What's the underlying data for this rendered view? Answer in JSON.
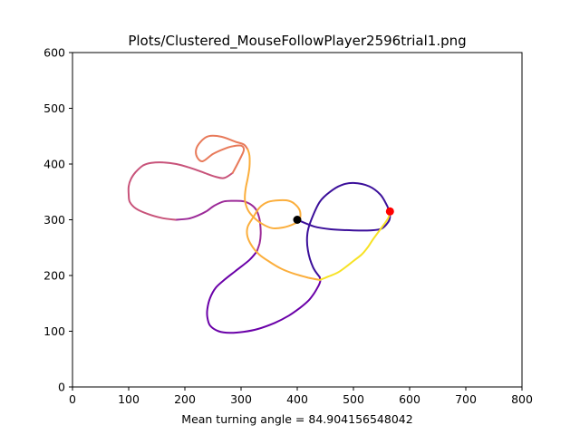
{
  "chart_data": {
    "type": "line",
    "title": "Plots/Clustered_MouseFollowPlayer2596trial1.png",
    "xlabel": "Mean turning angle = 84.904156548042",
    "ylabel": "",
    "xlim": [
      0,
      800
    ],
    "ylim": [
      0,
      600
    ],
    "xticks": [
      "0",
      "100",
      "200",
      "300",
      "400",
      "500",
      "600",
      "700",
      "800"
    ],
    "yticks": [
      "0",
      "100",
      "200",
      "300",
      "400",
      "500",
      "600"
    ],
    "grid": false,
    "series": [
      {
        "color": "#3b0f9a",
        "points": [
          [
            400,
            300
          ],
          [
            430,
            288
          ],
          [
            460,
            283
          ],
          [
            500,
            281
          ],
          [
            530,
            281
          ],
          [
            550,
            284
          ],
          [
            562,
            296
          ],
          [
            565,
            305
          ],
          [
            563,
            315
          ],
          [
            560,
            325
          ],
          [
            548,
            345
          ],
          [
            528,
            360
          ],
          [
            500,
            366
          ],
          [
            478,
            362
          ],
          [
            458,
            350
          ],
          [
            440,
            332
          ],
          [
            425,
            300
          ],
          [
            418,
            275
          ],
          [
            419,
            245
          ],
          [
            428,
            215
          ],
          [
            440,
            197
          ]
        ]
      },
      {
        "color": "#6a00a8",
        "points": [
          [
            440,
            197
          ],
          [
            441,
            190
          ],
          [
            438,
            182
          ],
          [
            430,
            168
          ],
          [
            420,
            155
          ],
          [
            405,
            142
          ],
          [
            385,
            128
          ],
          [
            360,
            115
          ],
          [
            330,
            104
          ],
          [
            305,
            99
          ],
          [
            280,
            97
          ],
          [
            260,
            100
          ],
          [
            245,
            110
          ],
          [
            240,
            125
          ],
          [
            240,
            140
          ],
          [
            245,
            160
          ],
          [
            255,
            178
          ],
          [
            270,
            192
          ],
          [
            290,
            208
          ],
          [
            315,
            228
          ],
          [
            328,
            243
          ]
        ]
      },
      {
        "color": "#9c2a98",
        "points": [
          [
            328,
            243
          ],
          [
            333,
            258
          ],
          [
            335,
            275
          ],
          [
            334,
            293
          ],
          [
            332,
            305
          ],
          [
            327,
            318
          ],
          [
            318,
            327
          ],
          [
            305,
            333
          ],
          [
            290,
            334
          ],
          [
            270,
            333
          ],
          [
            252,
            325
          ],
          [
            238,
            315
          ],
          [
            224,
            308
          ],
          [
            206,
            302
          ],
          [
            183,
            300
          ]
        ]
      },
      {
        "color": "#c8537a",
        "points": [
          [
            183,
            300
          ],
          [
            160,
            303
          ],
          [
            135,
            310
          ],
          [
            113,
            320
          ],
          [
            102,
            332
          ],
          [
            100,
            345
          ],
          [
            100,
            360
          ],
          [
            104,
            373
          ],
          [
            112,
            385
          ],
          [
            125,
            397
          ],
          [
            140,
            402
          ],
          [
            162,
            403
          ],
          [
            185,
            400
          ],
          [
            210,
            393
          ],
          [
            235,
            384
          ],
          [
            255,
            377
          ],
          [
            270,
            375
          ],
          [
            285,
            384
          ]
        ]
      },
      {
        "color": "#e87a5a",
        "points": [
          [
            285,
            384
          ],
          [
            300,
            413
          ],
          [
            305,
            426
          ],
          [
            300,
            433
          ],
          [
            286,
            432
          ],
          [
            272,
            428
          ],
          [
            250,
            418
          ],
          [
            232,
            405
          ],
          [
            222,
            412
          ],
          [
            220,
            426
          ],
          [
            228,
            440
          ],
          [
            242,
            450
          ],
          [
            265,
            449
          ],
          [
            290,
            440
          ],
          [
            305,
            435
          ],
          [
            312,
            426
          ]
        ]
      },
      {
        "color": "#fbae3c",
        "points": [
          [
            312,
            426
          ],
          [
            315,
            415
          ],
          [
            315,
            395
          ],
          [
            312,
            375
          ],
          [
            308,
            355
          ],
          [
            307,
            335
          ],
          [
            312,
            318
          ],
          [
            322,
            305
          ],
          [
            337,
            293
          ],
          [
            355,
            285
          ],
          [
            374,
            286
          ],
          [
            393,
            292
          ],
          [
            404,
            300
          ],
          [
            405,
            315
          ],
          [
            397,
            327
          ],
          [
            385,
            334
          ],
          [
            368,
            335
          ],
          [
            348,
            332
          ],
          [
            333,
            322
          ],
          [
            322,
            305
          ],
          [
            312,
            288
          ],
          [
            311,
            272
          ],
          [
            318,
            255
          ],
          [
            332,
            238
          ],
          [
            350,
            225
          ],
          [
            372,
            212
          ],
          [
            395,
            203
          ],
          [
            420,
            196
          ],
          [
            440,
            192
          ]
        ]
      },
      {
        "color": "#f7e225",
        "points": [
          [
            440,
            192
          ],
          [
            455,
            198
          ],
          [
            475,
            207
          ],
          [
            500,
            226
          ],
          [
            515,
            238
          ],
          [
            525,
            250
          ],
          [
            535,
            265
          ],
          [
            548,
            283
          ],
          [
            562,
            303
          ],
          [
            565,
            315
          ]
        ]
      }
    ],
    "markers": [
      {
        "label": "start",
        "x": 400,
        "y": 300,
        "color": "#000000"
      },
      {
        "label": "end",
        "x": 565,
        "y": 315,
        "color": "#ff0000"
      }
    ]
  }
}
